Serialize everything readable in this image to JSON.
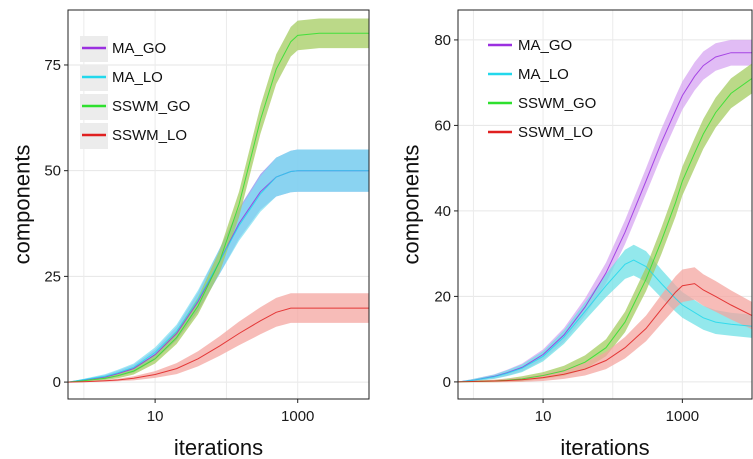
{
  "chart_data": [
    {
      "type": "line",
      "xscale": "log10",
      "xlim": [
        0.6,
        10000
      ],
      "ylim": [
        -4,
        88
      ],
      "xlabel": "iterations",
      "ylabel": "components",
      "xticks": [
        10,
        1000
      ],
      "xtick_labels": [
        "10",
        "1000"
      ],
      "yticks": [
        0,
        25,
        50,
        75
      ],
      "ytick_labels": [
        "0",
        "25",
        "50",
        "75"
      ],
      "grid": true,
      "legend_position": "top-left",
      "legend_background": true,
      "series": [
        {
          "name": "MA_GO",
          "color": "#9b30e0",
          "band": "#8f8ff0",
          "x": [
            0.6,
            1,
            2,
            3,
            5,
            10,
            20,
            40,
            80,
            150,
            300,
            500,
            800,
            1000,
            2000,
            10000
          ],
          "y": [
            0,
            0.5,
            1.2,
            2,
            3.2,
            6.5,
            11.5,
            19,
            28.5,
            37.5,
            45,
            48.5,
            49.8,
            50,
            50,
            50
          ],
          "err": [
            0,
            0.2,
            0.5,
            0.7,
            0.9,
            1.2,
            1.6,
            2.2,
            3,
            3.6,
            4.2,
            4.6,
            4.9,
            5,
            5,
            5
          ]
        },
        {
          "name": "MA_LO",
          "color": "#22d8ec",
          "band": "#7fe0f0",
          "x": [
            0.6,
            1,
            2,
            3,
            5,
            10,
            20,
            40,
            80,
            150,
            300,
            500,
            800,
            1000,
            2000,
            10000
          ],
          "y": [
            0,
            0.6,
            1.4,
            2.2,
            3.5,
            7,
            12,
            19.5,
            28.5,
            37,
            44.5,
            48.5,
            49.8,
            50,
            50,
            50
          ],
          "err": [
            0,
            0.2,
            0.5,
            0.7,
            0.9,
            1.2,
            1.6,
            2.2,
            3,
            3.6,
            4.2,
            4.6,
            4.9,
            5,
            5,
            5
          ]
        },
        {
          "name": "SSWM_GO",
          "color": "#2ee02e",
          "band": "#a4cc60",
          "x": [
            0.6,
            1,
            2,
            3,
            5,
            10,
            20,
            40,
            80,
            150,
            300,
            500,
            800,
            1000,
            2000,
            10000
          ],
          "y": [
            0,
            0.3,
            0.9,
            1.5,
            2.6,
            5.5,
            10.5,
            18,
            28.5,
            42,
            62,
            74,
            80.5,
            82,
            82.5,
            82.5
          ],
          "err": [
            0,
            0.2,
            0.4,
            0.6,
            0.8,
            1.1,
            1.5,
            2,
            2.6,
            3,
            3.3,
            3.5,
            3.5,
            3.5,
            3.5,
            3.5
          ]
        },
        {
          "name": "SSWM_LO",
          "color": "#e02020",
          "band": "#f4a6a0",
          "x": [
            0.6,
            1,
            2,
            3,
            5,
            10,
            20,
            40,
            80,
            150,
            300,
            500,
            800,
            1000,
            2000,
            10000
          ],
          "y": [
            0,
            0.1,
            0.3,
            0.5,
            0.9,
            1.8,
            3.2,
            5.5,
            8.5,
            11.5,
            14.5,
            16.5,
            17.5,
            17.5,
            17.5,
            17.5
          ],
          "err": [
            0,
            0.1,
            0.2,
            0.3,
            0.5,
            0.8,
            1.3,
            1.8,
            2.3,
            2.8,
            3.2,
            3.4,
            3.5,
            3.5,
            3.5,
            3.5
          ]
        }
      ]
    },
    {
      "type": "line",
      "xscale": "log10",
      "xlim": [
        0.6,
        10000
      ],
      "ylim": [
        -4,
        87
      ],
      "xlabel": "iterations",
      "ylabel": "components",
      "xticks": [
        10,
        1000
      ],
      "xtick_labels": [
        "10",
        "1000"
      ],
      "yticks": [
        0,
        20,
        40,
        60,
        80
      ],
      "ytick_labels": [
        "0",
        "20",
        "40",
        "60",
        "80"
      ],
      "grid": true,
      "legend_position": "top-left",
      "legend_background": false,
      "series": [
        {
          "name": "MA_GO",
          "color": "#9b30e0",
          "band": "#d7a6f2",
          "x": [
            0.6,
            1,
            2,
            3,
            5,
            10,
            20,
            40,
            80,
            150,
            300,
            500,
            800,
            1000,
            1500,
            2000,
            3000,
            5000,
            10000
          ],
          "y": [
            0,
            0.4,
            1.3,
            2.1,
            3.4,
            6.4,
            11,
            17.5,
            25.5,
            35,
            47,
            56,
            63.5,
            67,
            71.5,
            74,
            76,
            77,
            77
          ],
          "err": [
            0,
            0.3,
            0.5,
            0.7,
            0.9,
            1.2,
            1.6,
            2,
            2.4,
            2.8,
            3,
            3.2,
            3.3,
            3.3,
            3.3,
            3.3,
            3.2,
            3,
            3
          ]
        },
        {
          "name": "MA_LO",
          "color": "#22d8ec",
          "band": "#6fe0e6",
          "x": [
            0.6,
            1,
            2,
            3,
            5,
            10,
            20,
            40,
            80,
            150,
            200,
            300,
            500,
            800,
            1000,
            2000,
            3000,
            5000,
            10000
          ],
          "y": [
            0,
            0.4,
            1.2,
            2,
            3.2,
            6,
            10.5,
            16.5,
            22.5,
            27.5,
            28.5,
            27,
            23,
            19.5,
            18,
            15,
            14,
            13.5,
            13
          ],
          "err": [
            0,
            0.3,
            0.5,
            0.7,
            0.9,
            1.2,
            1.6,
            2.1,
            2.7,
            3.4,
            3.6,
            3.6,
            3.3,
            3.1,
            3,
            2.8,
            2.8,
            2.7,
            2.7
          ]
        },
        {
          "name": "SSWM_GO",
          "color": "#2ee02e",
          "band": "#a4cc60",
          "x": [
            0.6,
            1,
            2,
            3,
            5,
            10,
            20,
            40,
            80,
            150,
            300,
            500,
            800,
            1000,
            1500,
            2000,
            3000,
            5000,
            10000
          ],
          "y": [
            0,
            0.1,
            0.2,
            0.4,
            0.7,
            1.5,
            2.6,
            4.6,
            8,
            14,
            24,
            33,
            42,
            47,
            53.5,
            58,
            63,
            67.5,
            71
          ],
          "err": [
            0,
            0.2,
            0.3,
            0.4,
            0.6,
            0.8,
            1.2,
            1.6,
            2,
            2.4,
            2.8,
            3.1,
            3.3,
            3.4,
            3.5,
            3.5,
            3.5,
            3.5,
            3.5
          ]
        },
        {
          "name": "SSWM_LO",
          "color": "#e02020",
          "band": "#f4a6a0",
          "x": [
            0.6,
            1,
            2,
            3,
            5,
            10,
            20,
            40,
            80,
            150,
            300,
            500,
            800,
            1000,
            1500,
            2000,
            3000,
            5000,
            10000
          ],
          "y": [
            0,
            0.1,
            0.2,
            0.3,
            0.5,
            1,
            1.8,
            3,
            5,
            8,
            12.5,
            17,
            21,
            22.5,
            23,
            21.5,
            20,
            18,
            15.5
          ],
          "err": [
            0,
            0.2,
            0.3,
            0.4,
            0.5,
            0.8,
            1.1,
            1.5,
            2,
            2.5,
            3,
            3.4,
            3.7,
            3.8,
            3.8,
            3.7,
            3.6,
            3.4,
            3.2
          ]
        }
      ]
    }
  ]
}
